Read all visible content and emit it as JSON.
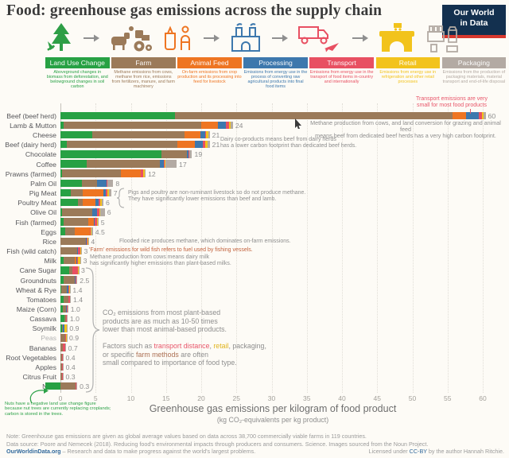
{
  "header": {
    "title": "Food: greenhouse gas emissions across the supply chain",
    "logo_line1": "Our World",
    "logo_line2": "in Data",
    "logo_bg": "#13304f",
    "logo_bar": "#d7382e"
  },
  "supply_chain_stages": [
    "land-use-change",
    "farm",
    "animal-feed",
    "processing",
    "transport",
    "retail",
    "packaging"
  ],
  "legend": [
    {
      "label": "Land Use Change",
      "color": "#27a144",
      "desc": "Aboveground changes in biomass from deforestation, and belowground changes in soil carbon"
    },
    {
      "label": "Farm",
      "color": "#9b7a59",
      "desc": "Methane emissions from cows, methane from rice, emissions from fertilizers, manure, and farm machinery"
    },
    {
      "label": "Animal Feed",
      "color": "#ee7522",
      "desc": "On-farm emissions from crop production and its processing into feed for livestock"
    },
    {
      "label": "Processing",
      "color": "#3d78ad",
      "desc": "Emissions from energy use in the process of converting raw agricultural products into final food items"
    },
    {
      "label": "Transport",
      "color": "#e85062",
      "desc": "Emissions from energy use in the transport of food items in-country and internationally"
    },
    {
      "label": "Retail",
      "color": "#f2c31c",
      "desc": "Emissions from energy use in refrigeration and other retail processes"
    },
    {
      "label": "Packaging",
      "color": "#b3aaa3",
      "desc": "Emissions from the production of packaging materials, material transport and end-of-life disposal"
    }
  ],
  "chart_data": {
    "type": "bar",
    "stacked": true,
    "xlabel": "Greenhouse gas emissions per kilogram of food product",
    "xlabel_sub": "(kg CO₂-equivalents per kg product)",
    "x_ticks": [
      0,
      5,
      10,
      15,
      20,
      25,
      30,
      35,
      40,
      45,
      50,
      55,
      60
    ],
    "xlim": [
      -3,
      63
    ],
    "grid": "dotted-vertical",
    "series_keys": [
      "land_use_change",
      "farm",
      "animal_feed",
      "processing",
      "transport",
      "retail",
      "packaging"
    ],
    "colors": [
      "#27a144",
      "#9b7a59",
      "#ee7522",
      "#3d78ad",
      "#e85062",
      "#f2c31c",
      "#b3aaa3"
    ],
    "rows": [
      {
        "label": "Beef (beef herd)",
        "total_label": "60",
        "values": [
          16.3,
          39.4,
          1.9,
          1.8,
          0.5,
          0.2,
          0.3
        ]
      },
      {
        "label": "Lamb & Mutton",
        "total_label": "24",
        "values": [
          0.5,
          19.5,
          2.4,
          1.1,
          0.5,
          0.2,
          0.3
        ]
      },
      {
        "label": "Cheese",
        "total_label": "21",
        "values": [
          4.5,
          13.1,
          2.3,
          0.7,
          0.1,
          0.3,
          0.2
        ]
      },
      {
        "label": "Beef (dairy herd)",
        "total_label": "21",
        "values": [
          0.9,
          15.7,
          2.5,
          1.1,
          0.4,
          0.3,
          0.3
        ]
      },
      {
        "label": "Chocolate",
        "total_label": "19",
        "values": [
          14.3,
          3.7,
          0,
          0.2,
          0.1,
          0,
          0.4
        ]
      },
      {
        "label": "Coffee",
        "total_label": "17",
        "values": [
          3.7,
          10.4,
          0,
          0.6,
          0.1,
          0.1,
          1.6
        ]
      },
      {
        "label": "Prawns (farmed)",
        "total_label": "12",
        "values": [
          0.2,
          8.4,
          2.8,
          0,
          0.3,
          0.3,
          0.1
        ]
      },
      {
        "label": "Palm Oil",
        "total_label": "8",
        "values": [
          3.1,
          2.1,
          0,
          1.3,
          0.2,
          0,
          0.8
        ]
      },
      {
        "label": "Pig Meat",
        "total_label": "7",
        "values": [
          1.5,
          1.7,
          2.9,
          0.3,
          0.3,
          0.2,
          0.3
        ]
      },
      {
        "label": "Poultry Meat",
        "total_label": "6",
        "values": [
          2.5,
          0.7,
          1.8,
          0.4,
          0.3,
          0.2,
          0.2
        ]
      },
      {
        "label": "Olive Oil",
        "total_label": "6",
        "values": [
          0.2,
          4.3,
          0,
          0.7,
          0.3,
          0.1,
          0.7
        ]
      },
      {
        "label": "Fish (farmed)",
        "total_label": "5",
        "values": [
          0.5,
          3.5,
          0.8,
          0.1,
          0.3,
          0.1,
          0.1
        ]
      },
      {
        "label": "Eggs",
        "total_label": "4.5",
        "values": [
          0.7,
          1.3,
          2.2,
          0,
          0.1,
          0.1,
          0.2
        ]
      },
      {
        "label": "Rice",
        "total_label": "4",
        "values": [
          0,
          3.6,
          0,
          0.1,
          0.1,
          0.1,
          0.1
        ]
      },
      {
        "label": "Fish (wild catch)",
        "total_label": "3",
        "values": [
          0,
          2.4,
          0,
          0.1,
          0.3,
          0.1,
          0.1
        ]
      },
      {
        "label": "Milk",
        "total_label": "3",
        "values": [
          0.5,
          1.5,
          0.25,
          0.15,
          0.1,
          0.3,
          0.1
        ]
      },
      {
        "label": "Cane Sugar",
        "total_label": "3",
        "values": [
          1.2,
          0.5,
          0,
          0,
          0.8,
          0.05,
          0.05
        ]
      },
      {
        "label": "Groundnuts",
        "total_label": "2.5",
        "values": [
          0.4,
          1.6,
          0,
          0.1,
          0.15,
          0.05,
          0.1
        ]
      },
      {
        "label": "Wheat & Rye",
        "total_label": "1.4",
        "values": [
          0.1,
          0.8,
          0,
          0.2,
          0.15,
          0.05,
          0.1
        ]
      },
      {
        "label": "Tomatoes",
        "total_label": "1.4",
        "values": [
          0.4,
          0.7,
          0,
          0,
          0.2,
          0.02,
          0.15
        ]
      },
      {
        "label": "Maize (Corn)",
        "total_label": "1.0",
        "values": [
          0.3,
          0.5,
          0,
          0.08,
          0.1,
          0.04,
          0.08
        ]
      },
      {
        "label": "Cassava",
        "total_label": "1.0",
        "values": [
          0.6,
          0.2,
          0,
          0,
          0.1,
          0.05,
          0.05
        ]
      },
      {
        "label": "Soymilk",
        "total_label": "0.9",
        "values": [
          0.2,
          0.15,
          0,
          0.17,
          0.1,
          0.25,
          0.08
        ]
      },
      {
        "label": "Peas",
        "total_label": "0.9",
        "muted": true,
        "values": [
          0,
          0.7,
          0,
          0,
          0.1,
          0.05,
          0.05
        ]
      },
      {
        "label": "Bananas",
        "total_label": "0.7",
        "values": [
          0,
          0.3,
          0,
          0.06,
          0.3,
          0.02,
          0.07
        ]
      },
      {
        "label": "Root Vegetables",
        "total_label": "0.4",
        "values": [
          0,
          0.2,
          0,
          0,
          0.1,
          0.05,
          0.05
        ]
      },
      {
        "label": "Apples",
        "total_label": "0.4",
        "values": [
          0,
          0.25,
          0,
          0,
          0.1,
          0.02,
          0.04
        ]
      },
      {
        "label": "Citrus Fruit",
        "total_label": "0.3",
        "values": [
          0.05,
          0.2,
          0,
          0,
          0.09,
          0.02,
          0.04
        ]
      },
      {
        "label": "Nuts",
        "total_label": "0.3",
        "values": [
          -2.2,
          2.1,
          0,
          0.05,
          0.1,
          0.02,
          0.12
        ]
      }
    ]
  },
  "annotations": {
    "transport_note": "Transport emissions are very\nsmall for most food products",
    "beef_note": "Methane production from cows, and land conversion for grazing and animal feed\nmeans beef from dedicated beef herds has a very high carbon footprint.",
    "dairy_note": "Dairy co-products means beef from dairy herds\nhas a lower carbon footprint than dedicated beef herds.",
    "pig_poultry_note": "Pigs and poultry are non-ruminant livestock so do not produce methane.\nThey have significantly lower emissions than beef and lamb.",
    "rice_note": "Flooded rice produces methane, which dominates on-farm emissions.",
    "wild_fish_note": "'Farm' emissions for wild fish refers to fuel used by fishing vessels.",
    "milk_note": "Methane production from cows means dairy milk\nhas significantly higher emissions than plant-based milks.",
    "plant_note": "CO₂ emissions from most plant-based\nproducts are as much as 10-50 times\nlower than most animal-based products.",
    "factors_note_parts": [
      {
        "text": "Factors such as "
      },
      {
        "text": "transport distance",
        "color": "#e8566a"
      },
      {
        "text": ", "
      },
      {
        "text": "retail",
        "color": "#e0b41e"
      },
      {
        "text": ", packaging,\nor specific "
      },
      {
        "text": "farm methods",
        "color": "#ab6f52"
      },
      {
        "text": " are often\nsmall compared to importance of food type."
      }
    ],
    "nuts_note": "Nuts have a negative land use change figure\nbecause nut trees are currently replacing croplands;\ncarbon is stored in the trees."
  },
  "axis": {
    "title": "Greenhouse gas emissions per kilogram of food product",
    "subtitle": "(kg CO₂-equivalents per kg product)"
  },
  "footer": {
    "note": "Note: Greenhouse gas emissions are given as global average values based on data across 38,700 commercially viable farms in 119 countries.",
    "source": "Data source: Poore and Nemecek (2018). Reducing food's environmental impacts through producers and consumers. Science. Images sourced from the Noun Project.",
    "owid_link": "OurWorldinData.org",
    "owid_rest": " – Research and data to make progress against the world's largest problems.",
    "license_pre": "Licensed under ",
    "license_link": "CC-BY",
    "license_post": " by the author Hannah Ritchie."
  }
}
